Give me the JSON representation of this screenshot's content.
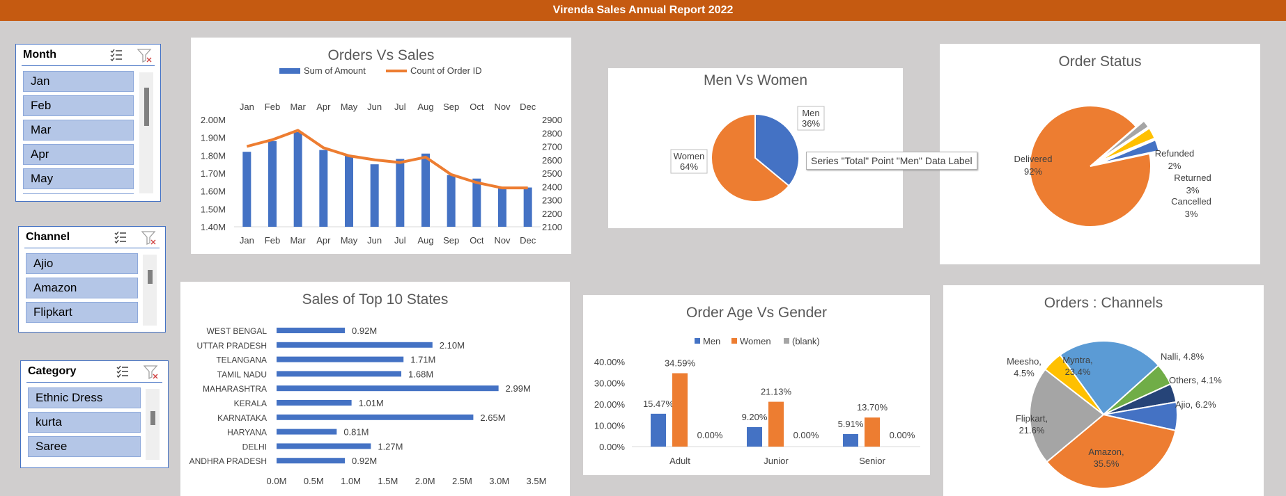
{
  "report_title": "Virenda Sales Annual Report 2022",
  "slicers": [
    {
      "id": "month",
      "title": "Month",
      "items": [
        "Jan",
        "Feb",
        "Mar",
        "Apr",
        "May"
      ]
    },
    {
      "id": "channel",
      "title": "Channel",
      "items": [
        "Ajio",
        "Amazon",
        "Flipkart"
      ]
    },
    {
      "id": "category",
      "title": "Category",
      "items": [
        "Ethnic Dress",
        "kurta",
        "Saree"
      ]
    }
  ],
  "tooltip": "Series \"Total\" Point \"Men\" Data Label",
  "chart_data": [
    {
      "id": "orders-vs-sales",
      "type": "bar",
      "title": "Orders Vs Sales",
      "categories": [
        "Jan",
        "Feb",
        "Mar",
        "Apr",
        "May",
        "Jun",
        "Jul",
        "Aug",
        "Sep",
        "Oct",
        "Nov",
        "Dec"
      ],
      "series": [
        {
          "name": "Sum of Amount",
          "type": "bar",
          "axis": "left",
          "color": "#4472c4",
          "values": [
            1820000,
            1880000,
            1930000,
            1830000,
            1800000,
            1750000,
            1780000,
            1810000,
            1690000,
            1670000,
            1620000,
            1620000
          ]
        },
        {
          "name": "Count of Order ID",
          "type": "line",
          "axis": "right",
          "color": "#ed7d31",
          "values": [
            2700,
            2750,
            2820,
            2690,
            2630,
            2600,
            2580,
            2620,
            2490,
            2430,
            2390,
            2390
          ]
        }
      ],
      "yleft_ticks": [
        "2.00M",
        "1.90M",
        "1.80M",
        "1.70M",
        "1.60M",
        "1.50M",
        "1.40M"
      ],
      "yleft_range": [
        1400000,
        2000000
      ],
      "yright_ticks": [
        "2900",
        "2800",
        "2700",
        "2600",
        "2500",
        "2400",
        "2300",
        "2200",
        "2100"
      ],
      "yright_range": [
        2100,
        2900
      ],
      "legend": "top"
    },
    {
      "id": "men-vs-women",
      "type": "pie",
      "title": "Men Vs Women",
      "slices": [
        {
          "name": "Men",
          "value": 36,
          "label": "36%",
          "color": "#4472c4"
        },
        {
          "name": "Women",
          "value": 64,
          "label": "64%",
          "color": "#ed7d31"
        }
      ]
    },
    {
      "id": "order-status",
      "type": "pie",
      "title": "Order Status",
      "slices": [
        {
          "name": "Delivered",
          "value": 92,
          "label": "92%",
          "color": "#ed7d31"
        },
        {
          "name": "Refunded",
          "value": 2,
          "label": "2%",
          "color": "#a5a5a5"
        },
        {
          "name": "Returned",
          "value": 3,
          "label": "3%",
          "color": "#ffc000"
        },
        {
          "name": "Cancelled",
          "value": 3,
          "label": "3%",
          "color": "#4472c4"
        }
      ]
    },
    {
      "id": "top-states",
      "type": "bar",
      "orientation": "horizontal",
      "title": "Sales of Top 10 States",
      "categories": [
        "WEST BENGAL",
        "UTTAR PRADESH",
        "TELANGANA",
        "TAMIL NADU",
        "MAHARASHTRA",
        "KERALA",
        "KARNATAKA",
        "HARYANA",
        "DELHI",
        "ANDHRA PRADESH"
      ],
      "values": [
        0.92,
        2.1,
        1.71,
        1.68,
        2.99,
        1.01,
        2.65,
        0.81,
        1.27,
        0.92
      ],
      "value_labels": [
        "0.92M",
        "2.10M",
        "1.71M",
        "1.68M",
        "2.99M",
        "1.01M",
        "2.65M",
        "0.81M",
        "1.27M",
        "0.92M"
      ],
      "x_ticks": [
        "0.0M",
        "0.5M",
        "1.0M",
        "1.5M",
        "2.0M",
        "2.5M",
        "3.0M",
        "3.5M"
      ],
      "xlim": [
        0,
        3.5
      ],
      "color": "#4472c4"
    },
    {
      "id": "age-vs-gender",
      "type": "bar",
      "title": "Order Age Vs Gender",
      "categories": [
        "Adult",
        "Junior",
        "Senior"
      ],
      "series": [
        {
          "name": "Men",
          "color": "#4472c4",
          "values": [
            15.47,
            9.2,
            5.91
          ],
          "labels": [
            "15.47%",
            "9.20%",
            "5.91%"
          ]
        },
        {
          "name": "Women",
          "color": "#ed7d31",
          "values": [
            34.59,
            21.13,
            13.7
          ],
          "labels": [
            "34.59%",
            "21.13%",
            "13.70%"
          ]
        },
        {
          "name": "(blank)",
          "color": "#a5a5a5",
          "values": [
            0,
            0,
            0
          ],
          "labels": [
            "0.00%",
            "0.00%",
            "0.00%"
          ]
        }
      ],
      "y_ticks": [
        "40.00%",
        "30.00%",
        "20.00%",
        "10.00%",
        "0.00%"
      ],
      "ylim": [
        0,
        40
      ],
      "legend": "top"
    },
    {
      "id": "orders-channels",
      "type": "pie",
      "title": "Orders : Channels",
      "slices": [
        {
          "name": "Myntra",
          "value": 23.4,
          "label": "23.4%",
          "color": "#5b9bd5"
        },
        {
          "name": "Nalli",
          "value": 4.8,
          "label": "4.8%",
          "color": "#70ad47"
        },
        {
          "name": "Others",
          "value": 4.1,
          "label": "4.1%",
          "color": "#264478"
        },
        {
          "name": "Ajio",
          "value": 6.2,
          "label": "6.2%",
          "color": "#4472c4"
        },
        {
          "name": "Amazon",
          "value": 35.5,
          "label": "35.5%",
          "color": "#ed7d31"
        },
        {
          "name": "Flipkart",
          "value": 21.6,
          "label": "21.6%",
          "color": "#a5a5a5"
        },
        {
          "name": "Meesho",
          "value": 4.5,
          "label": "4.5%",
          "color": "#ffc000"
        }
      ]
    }
  ]
}
